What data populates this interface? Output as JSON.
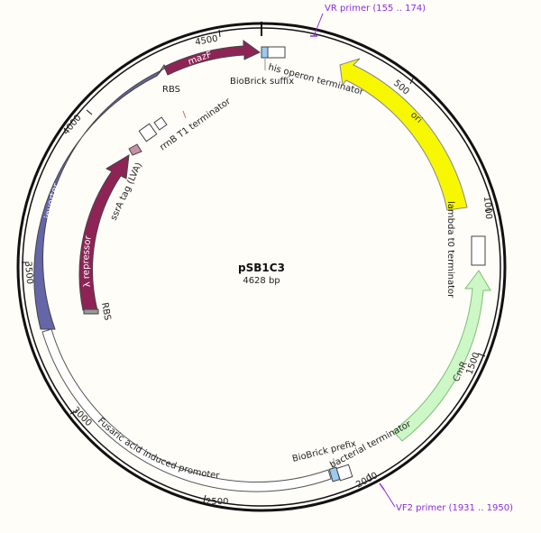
{
  "plasmid": {
    "name": "pSB1C3",
    "length_label": "4628 bp",
    "length": 4628
  },
  "ticks": [
    {
      "label": "500",
      "bp": 500
    },
    {
      "label": "1000",
      "bp": 1000
    },
    {
      "label": "1500",
      "bp": 1500
    },
    {
      "label": "2000",
      "bp": 2000
    },
    {
      "label": "2500",
      "bp": 2500
    },
    {
      "label": "3000",
      "bp": 3000
    },
    {
      "label": "3500",
      "bp": 3500
    },
    {
      "label": "4000",
      "bp": 4000
    },
    {
      "label": "4500",
      "bp": 4500
    }
  ],
  "features": {
    "mazf": "mazF",
    "ori": "ori",
    "inverter": "inverter",
    "lambda_repressor": "λ repressor",
    "cmr": "CmR",
    "fusaric_promoter": "Fusaric acid induced promoter"
  },
  "labels": {
    "rbs_top": "RBS",
    "rbs_bottom": "RBS",
    "biobrick_suffix": "BioBrick suffix",
    "his_operon_terminator": "his operon terminator",
    "rrnb_t1_terminator": "rrnB T1 terminator",
    "ssra_tag": "ssrA tag (LVA)",
    "lambda_t0_terminator": "lambda t0 terminator",
    "biobrick_prefix": "BioBrick prefix",
    "bacterial_terminator": "bacterial terminator"
  },
  "primers": {
    "vr": "VR primer  (155 .. 174)",
    "vf2": "VF2 primer  (1931 .. 1950)"
  },
  "colors": {
    "mazf": "#8e2456",
    "ori": "#f7f700",
    "inverter": "#6566a8",
    "lambda_repressor": "#8e2456",
    "cmr": "#cdf7c6",
    "promoter": "#ffffff",
    "primer": "#8a2be2",
    "biobrick": "#9ccaf0"
  }
}
